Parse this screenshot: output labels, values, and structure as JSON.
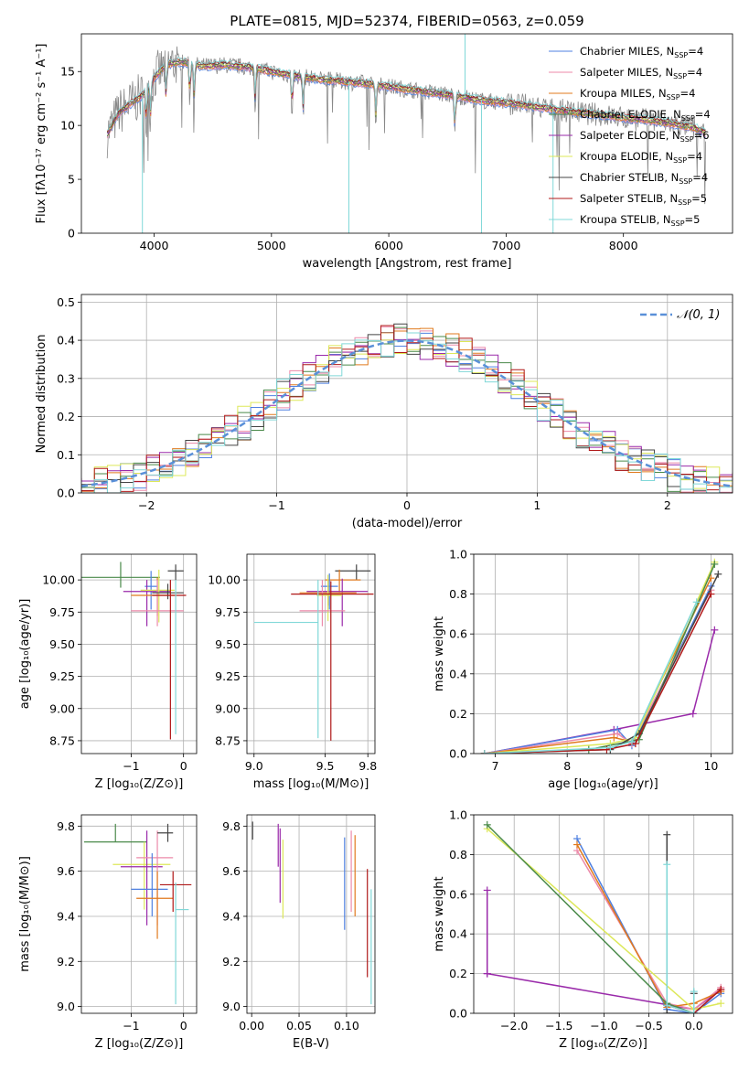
{
  "chart_data": [
    {
      "id": "spectrum",
      "type": "line",
      "title": "PLATE=0815, MJD=52374, FIBERID=0563, z=0.059",
      "xlabel": "wavelength [Angstrom, rest frame]",
      "ylabel": "Flux [fλ10⁻¹⁷ erg cm⁻² s⁻¹ A⁻¹]",
      "xlim": [
        3380,
        8930
      ],
      "ylim": [
        0,
        18.5
      ],
      "xticks": [
        4000,
        5000,
        6000,
        7000,
        8000
      ],
      "yticks": [
        0,
        5,
        10,
        15
      ],
      "grid": false,
      "legend_position": "upper-right",
      "legend": [
        {
          "label": "Chabrier MILES, N",
          "sub": "SSP",
          "suffix": "=4",
          "color": "#4f80e0"
        },
        {
          "label": "Salpeter MILES, N",
          "sub": "SSP",
          "suffix": "=4",
          "color": "#ec8aaa"
        },
        {
          "label": "Kroupa MILES, N",
          "sub": "SSP",
          "suffix": "=4",
          "color": "#e07a1e"
        },
        {
          "label": "Chabrier ELODIE, N",
          "sub": "SSP",
          "suffix": "=4",
          "color": "#4a8a4a"
        },
        {
          "label": "Salpeter ELODIE, N",
          "sub": "SSP",
          "suffix": "=6",
          "color": "#9a2aaa"
        },
        {
          "label": "Kroupa ELODIE, N",
          "sub": "SSP",
          "suffix": "=4",
          "color": "#dde85a"
        },
        {
          "label": "Chabrier STELIB, N",
          "sub": "SSP",
          "suffix": "=4",
          "color": "#444444"
        },
        {
          "label": "Salpeter STELIB, N",
          "sub": "SSP",
          "suffix": "=5",
          "color": "#b01818"
        },
        {
          "label": "Kroupa STELIB, N",
          "sub": "SSP",
          "suffix": "=5",
          "color": "#80d8d8"
        }
      ],
      "data_color": "#888888",
      "continuum": {
        "x": [
          3600,
          3700,
          3800,
          3900,
          4000,
          4100,
          4200,
          4300,
          4400,
          4600,
          4800,
          5000,
          5200,
          5400,
          5600,
          5800,
          6000,
          6200,
          6400,
          6600,
          6800,
          7000,
          7200,
          7400,
          7600,
          7800,
          8000,
          8200,
          8400,
          8600,
          8700
        ],
        "y": [
          9.2,
          11.2,
          12.0,
          12.8,
          14.4,
          15.6,
          15.9,
          15.8,
          15.5,
          15.6,
          15.4,
          15.0,
          14.6,
          14.3,
          14.1,
          13.9,
          13.6,
          13.3,
          13.0,
          12.7,
          12.3,
          12.1,
          11.8,
          11.5,
          11.2,
          11.0,
          10.7,
          10.5,
          10.2,
          9.8,
          9.3
        ]
      },
      "absorption_lines": [
        3934,
        3969,
        4102,
        4304,
        4341,
        4861,
        5175,
        5270,
        5890,
        6563
      ],
      "sky_residuals": [
        {
          "x": 5660,
          "y": 0.0
        },
        {
          "x": 6790,
          "y": 0.0
        },
        {
          "x": 3900,
          "y": 0.0
        },
        {
          "x": 7400,
          "y": 0.0
        },
        {
          "x": 6650,
          "y": 18.5
        }
      ]
    },
    {
      "id": "residuals",
      "type": "step",
      "xlabel": "(data-model)/error",
      "ylabel": "Normed distribution",
      "xlim": [
        -2.5,
        2.5
      ],
      "ylim": [
        0,
        0.52
      ],
      "xticks": [
        -2,
        -1,
        0,
        1,
        2
      ],
      "yticks": [
        0.0,
        0.1,
        0.2,
        0.3,
        0.4,
        0.5
      ],
      "grid": true,
      "legend_position": "upper-right",
      "legend": [
        {
          "label": "𝒩(0, 1)",
          "color": "#5a90d8",
          "style": "dashed"
        }
      ],
      "bin_width": 0.1,
      "normal": {
        "mean": 0,
        "sigma": 1
      }
    },
    {
      "id": "age_vs_Z",
      "type": "errorbar",
      "xlabel": "Z [log₁₀(Z/Z⊙)]",
      "ylabel": "age  [log₁₀(age/yr)]",
      "xlim": [
        -1.95,
        0.25
      ],
      "ylim": [
        8.65,
        10.2
      ],
      "xticks": [
        -1,
        0
      ],
      "yticks": [
        8.75,
        9.0,
        9.25,
        9.5,
        9.75,
        10.0
      ],
      "grid": true,
      "points": [
        {
          "x": -1.2,
          "xerr": [
            0.9,
            0.75
          ],
          "y": 10.02,
          "yerr": [
            0.08,
            0.12
          ],
          "color": "#4a8a4a"
        },
        {
          "x": -0.62,
          "xerr": [
            0.12,
            0.12
          ],
          "y": 9.95,
          "yerr": [
            0.18,
            0.12
          ],
          "color": "#4f80e0"
        },
        {
          "x": -0.7,
          "xerr": [
            0.45,
            0.45
          ],
          "y": 9.91,
          "yerr": [
            0.27,
            0.09
          ],
          "color": "#9a2aaa"
        },
        {
          "x": -0.47,
          "xerr": [
            0.35,
            0.3
          ],
          "y": 9.92,
          "yerr": [
            0.25,
            0.16
          ],
          "color": "#dde85a"
        },
        {
          "x": -0.5,
          "xerr": [
            0.5,
            0.35
          ],
          "y": 9.88,
          "yerr": [
            0.16,
            0.14
          ],
          "color": "#e07a1e"
        },
        {
          "x": -0.5,
          "xerr": [
            0.5,
            0.5
          ],
          "y": 9.76,
          "yerr": [
            0.12,
            0.24
          ],
          "color": "#ec8aaa"
        },
        {
          "x": -0.3,
          "xerr": [
            0.3,
            0.3
          ],
          "y": 9.9,
          "yerr": [
            0.05,
            0.07
          ],
          "color": "#444444"
        },
        {
          "x": -0.25,
          "xerr": [
            0.35,
            0.3
          ],
          "y": 9.88,
          "yerr": [
            1.12,
            0.12
          ],
          "color": "#b01818"
        },
        {
          "x": -0.15,
          "xerr": [
            0.0,
            0.0
          ],
          "y": 9.67,
          "yerr": [
            0.87,
            0.33
          ],
          "color": "#80d8d8"
        },
        {
          "x": -0.15,
          "xerr": [
            0.15,
            0.15
          ],
          "y": 10.07,
          "yerr": [
            0.07,
            0.05
          ],
          "color": "#444444"
        }
      ]
    },
    {
      "id": "age_vs_mass",
      "type": "errorbar",
      "xlabel": "mass [log₁₀(M/M⊙)]",
      "ylabel": "",
      "xlim": [
        8.95,
        9.85
      ],
      "ylim": [
        8.65,
        10.2
      ],
      "xticks": [
        9.0,
        9.5,
        9.8
      ],
      "xticklabels": [
        "9.0",
        "9.5",
        "9.8"
      ],
      "yticks": [
        8.75,
        9.0,
        9.25,
        9.5,
        9.75,
        10.0
      ],
      "grid": true,
      "points": [
        {
          "x": 9.72,
          "xerr": [
            0.15,
            0.1
          ],
          "y": 10.07,
          "yerr": [
            0.07,
            0.05
          ],
          "color": "#444444"
        },
        {
          "x": 9.6,
          "xerr": [
            0.1,
            0.15
          ],
          "y": 10.0,
          "yerr": [
            0.1,
            0.08
          ],
          "color": "#e07a1e"
        },
        {
          "x": 9.53,
          "xerr": [
            0.06,
            0.06
          ],
          "y": 9.95,
          "yerr": [
            0.18,
            0.1
          ],
          "color": "#4f80e0"
        },
        {
          "x": 9.62,
          "xerr": [
            0.25,
            0.18
          ],
          "y": 9.91,
          "yerr": [
            0.27,
            0.1
          ],
          "color": "#9a2aaa"
        },
        {
          "x": 9.52,
          "xerr": [
            0.2,
            0.2
          ],
          "y": 9.9,
          "yerr": [
            0.1,
            0.1
          ],
          "color": "#e07a1e"
        },
        {
          "x": 9.52,
          "xerr": [
            0.08,
            0.1
          ],
          "y": 9.88,
          "yerr": [
            0.2,
            0.16
          ],
          "color": "#dde85a"
        },
        {
          "x": 9.48,
          "xerr": [
            0.16,
            0.16
          ],
          "y": 9.76,
          "yerr": [
            0.12,
            0.24
          ],
          "color": "#ec8aaa"
        },
        {
          "x": 9.54,
          "xerr": [
            0.28,
            0.3
          ],
          "y": 9.89,
          "yerr": [
            1.14,
            0.1
          ],
          "color": "#b01818"
        },
        {
          "x": 9.45,
          "xerr": [
            0.45,
            0.0
          ],
          "y": 9.67,
          "yerr": [
            0.9,
            0.33
          ],
          "color": "#80d8d8"
        }
      ]
    },
    {
      "id": "massweight_vs_age",
      "type": "line",
      "xlabel": "age  [log₁₀(age/yr)]",
      "ylabel": "mass weight",
      "xlim": [
        6.7,
        10.3
      ],
      "ylim": [
        0,
        1
      ],
      "xticks": [
        7,
        8,
        9,
        10
      ],
      "yticks": [
        0.0,
        0.2,
        0.4,
        0.6,
        0.8,
        1.0
      ],
      "grid": true,
      "series": [
        {
          "color": "#9a2aaa",
          "x": [
            6.85,
            8.65,
            9.75,
            10.05
          ],
          "y": [
            0.0,
            0.12,
            0.2,
            0.62
          ]
        },
        {
          "color": "#4f80e0",
          "x": [
            6.85,
            8.7,
            8.9,
            10.0
          ],
          "y": [
            0.0,
            0.12,
            0.04,
            0.84
          ]
        },
        {
          "color": "#ec8aaa",
          "x": [
            6.85,
            8.7,
            8.9,
            10.0
          ],
          "y": [
            0.0,
            0.1,
            0.05,
            0.82
          ]
        },
        {
          "color": "#e07a1e",
          "x": [
            6.85,
            8.65,
            8.9,
            10.0
          ],
          "y": [
            0.0,
            0.08,
            0.06,
            0.88
          ]
        },
        {
          "color": "#dde85a",
          "x": [
            6.85,
            8.6,
            8.95,
            10.05
          ],
          "y": [
            0.0,
            0.05,
            0.08,
            0.96
          ]
        },
        {
          "color": "#4a8a4a",
          "x": [
            6.85,
            8.3,
            9.0,
            10.05
          ],
          "y": [
            0.0,
            0.02,
            0.07,
            0.95
          ]
        },
        {
          "color": "#444444",
          "x": [
            6.85,
            8.6,
            9.0,
            10.1
          ],
          "y": [
            0.0,
            0.02,
            0.1,
            0.9
          ]
        },
        {
          "color": "#b01818",
          "x": [
            6.85,
            8.55,
            8.95,
            10.0
          ],
          "y": [
            0.0,
            0.02,
            0.05,
            0.8
          ]
        },
        {
          "color": "#80d8d8",
          "x": [
            6.85,
            8.6,
            8.9,
            9.8
          ],
          "y": [
            0.0,
            0.03,
            0.06,
            0.76
          ]
        }
      ]
    },
    {
      "id": "mass_vs_Z",
      "type": "errorbar",
      "xlabel": "Z [log₁₀(Z/Z⊙)]",
      "ylabel": "mass [log₁₀(M/M⊙)]",
      "xlim": [
        -1.95,
        0.25
      ],
      "ylim": [
        8.97,
        9.85
      ],
      "xticks": [
        -1,
        0
      ],
      "yticks": [
        9.0,
        9.2,
        9.4,
        9.6,
        9.8
      ],
      "grid": true,
      "points": [
        {
          "x": -1.3,
          "xerr": [
            0.6,
            0.6
          ],
          "y": 9.73,
          "yerr": [
            0.0,
            0.08
          ],
          "color": "#4a8a4a"
        },
        {
          "x": -0.75,
          "xerr": [
            0.6,
            0.5
          ],
          "y": 9.63,
          "yerr": [
            0.2,
            0.1
          ],
          "color": "#dde85a"
        },
        {
          "x": -0.7,
          "xerr": [
            0.5,
            0.3
          ],
          "y": 9.62,
          "yerr": [
            0.26,
            0.16
          ],
          "color": "#9a2aaa"
        },
        {
          "x": -0.5,
          "xerr": [
            0.4,
            0.3
          ],
          "y": 9.66,
          "yerr": [
            0.3,
            0.12
          ],
          "color": "#ec8aaa"
        },
        {
          "x": -0.3,
          "xerr": [
            0.2,
            0.1
          ],
          "y": 9.77,
          "yerr": [
            0.04,
            0.04
          ],
          "color": "#444444"
        },
        {
          "x": -0.6,
          "xerr": [
            0.4,
            0.3
          ],
          "y": 9.52,
          "yerr": [
            0.12,
            0.16
          ],
          "color": "#4f80e0"
        },
        {
          "x": -0.5,
          "xerr": [
            0.4,
            0.3
          ],
          "y": 9.48,
          "yerr": [
            0.18,
            0.12
          ],
          "color": "#e07a1e"
        },
        {
          "x": -0.2,
          "xerr": [
            0.25,
            0.35
          ],
          "y": 9.54,
          "yerr": [
            0.12,
            0.06
          ],
          "color": "#b01818"
        },
        {
          "x": -0.15,
          "xerr": [
            0.0,
            0.25
          ],
          "y": 9.43,
          "yerr": [
            0.42,
            0.12
          ],
          "color": "#80d8d8"
        }
      ]
    },
    {
      "id": "mass_vs_ebv",
      "type": "errorbar",
      "xlabel": "E(B-V)",
      "ylabel": "",
      "xlim": [
        -0.005,
        0.13
      ],
      "ylim": [
        8.97,
        9.85
      ],
      "xticks": [
        0.0,
        0.05,
        0.1
      ],
      "xticklabels": [
        "0.00",
        "0.05",
        "0.10"
      ],
      "yticks": [
        9.0,
        9.2,
        9.4,
        9.6,
        9.8
      ],
      "grid": true,
      "points": [
        {
          "x": 0.001,
          "xerr": [
            0,
            0
          ],
          "y": 9.78,
          "yerr": [
            0.04,
            0.04
          ],
          "color": "#444444"
        },
        {
          "x": 0.028,
          "xerr": [
            0,
            0
          ],
          "y": 9.71,
          "yerr": [
            0.09,
            0.1
          ],
          "color": "#9a2aaa"
        },
        {
          "x": 0.03,
          "xerr": [
            0,
            0
          ],
          "y": 9.62,
          "yerr": [
            0.16,
            0.17
          ],
          "color": "#9a2aaa"
        },
        {
          "x": 0.033,
          "xerr": [
            0,
            0
          ],
          "y": 9.57,
          "yerr": [
            0.18,
            0.17
          ],
          "color": "#dde85a"
        },
        {
          "x": 0.098,
          "xerr": [
            0,
            0
          ],
          "y": 9.54,
          "yerr": [
            0.2,
            0.21
          ],
          "color": "#4f80e0"
        },
        {
          "x": 0.105,
          "xerr": [
            0,
            0
          ],
          "y": 9.6,
          "yerr": [
            0.18,
            0.18
          ],
          "color": "#ec8aaa"
        },
        {
          "x": 0.109,
          "xerr": [
            0,
            0
          ],
          "y": 9.58,
          "yerr": [
            0.18,
            0.18
          ],
          "color": "#e07a1e"
        },
        {
          "x": 0.122,
          "xerr": [
            0,
            0
          ],
          "y": 9.37,
          "yerr": [
            0.24,
            0.24
          ],
          "color": "#b01818"
        },
        {
          "x": 0.126,
          "xerr": [
            0,
            0
          ],
          "y": 9.26,
          "yerr": [
            0.25,
            0.26
          ],
          "color": "#80d8d8"
        }
      ]
    },
    {
      "id": "massweight_vs_Z",
      "type": "line",
      "xlabel": "Z [log₁₀(Z/Z⊙)]",
      "ylabel": "mass weight",
      "xlim": [
        -2.45,
        0.43
      ],
      "ylim": [
        0,
        1
      ],
      "xticks": [
        -2.0,
        -1.5,
        -1.0,
        -0.5,
        0.0
      ],
      "xticklabels": [
        "−2.0",
        "−1.5",
        "−1.0",
        "−0.5",
        "0.0"
      ],
      "yticks": [
        0.0,
        0.2,
        0.4,
        0.6,
        0.8,
        1.0
      ],
      "grid": true,
      "series": [
        {
          "color": "#9a2aaa",
          "x": [
            -2.3,
            -2.3,
            -2.3,
            0.0,
            0.3
          ],
          "y": [
            0.62,
            0.2,
            0.2,
            0.02,
            0.12
          ]
        },
        {
          "color": "#4f80e0",
          "x": [
            -1.3,
            -0.3,
            0.0,
            0.3
          ],
          "y": [
            0.88,
            0.02,
            0.0,
            0.1
          ]
        },
        {
          "color": "#ec8aaa",
          "x": [
            -1.3,
            -0.3,
            0.0,
            0.3
          ],
          "y": [
            0.82,
            0.05,
            0.02,
            0.13
          ]
        },
        {
          "color": "#e07a1e",
          "x": [
            -1.3,
            -0.3,
            0.0,
            0.3
          ],
          "y": [
            0.85,
            0.03,
            0.05,
            0.11
          ]
        },
        {
          "color": "#dde85a",
          "x": [
            -2.3,
            0.0,
            0.3
          ],
          "y": [
            0.93,
            0.02,
            0.05
          ]
        },
        {
          "color": "#4a8a4a",
          "x": [
            -2.3,
            -0.3,
            0.0
          ],
          "y": [
            0.95,
            0.05,
            0.0
          ]
        },
        {
          "color": "#444444",
          "x": [
            -0.3,
            -0.3,
            0.0,
            0.0
          ],
          "y": [
            0.9,
            0.0,
            0.0,
            0.1
          ]
        },
        {
          "color": "#b01818",
          "x": [
            -0.3,
            0.0,
            0.3
          ],
          "y": [
            0.04,
            0.0,
            0.12
          ]
        },
        {
          "color": "#80d8d8",
          "x": [
            -0.3,
            -0.3,
            0.0,
            0.0
          ],
          "y": [
            0.75,
            0.04,
            0.0,
            0.11
          ]
        }
      ]
    }
  ]
}
